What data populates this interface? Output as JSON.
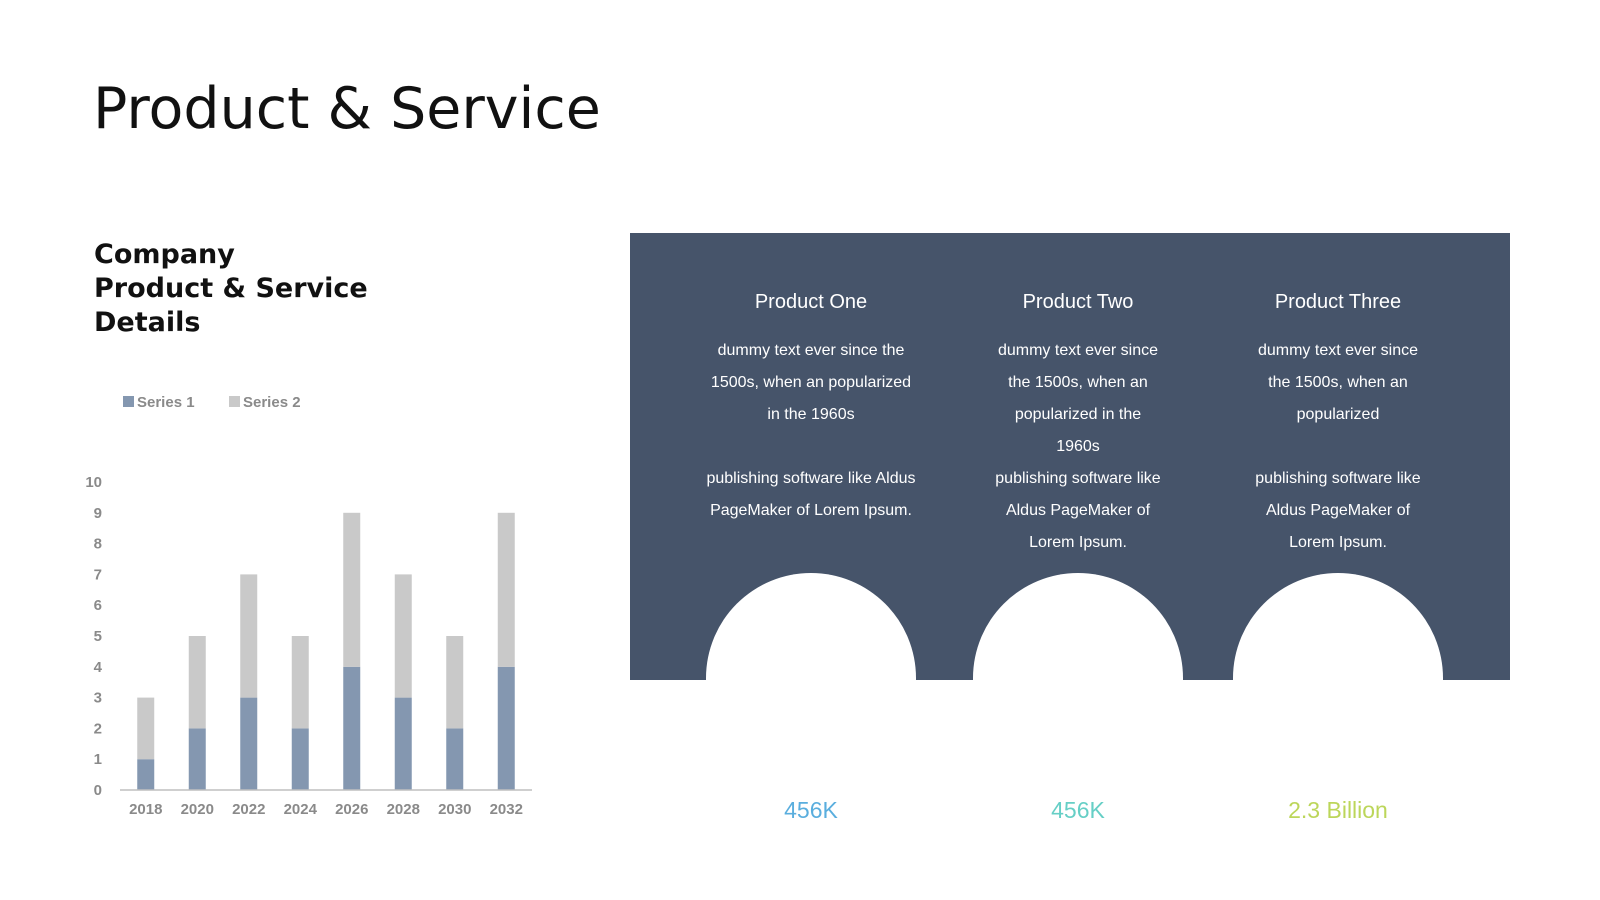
{
  "slide": {
    "title": "Product & Service",
    "subtitle_lines": [
      "Company",
      "Product & Service",
      "Details"
    ]
  },
  "chart_data": {
    "type": "bar",
    "stacked": true,
    "categories": [
      "2018",
      "2020",
      "2022",
      "2024",
      "2026",
      "2028",
      "2030",
      "2032"
    ],
    "series": [
      {
        "name": "Series 1",
        "values": [
          1,
          2,
          3,
          2,
          4,
          3,
          2,
          4
        ],
        "color": "#8497b0"
      },
      {
        "name": "Series 2",
        "values": [
          2,
          3,
          4,
          3,
          5,
          4,
          3,
          5
        ],
        "color": "#c9c9c9"
      }
    ],
    "yticks": [
      0,
      1,
      2,
      3,
      4,
      5,
      6,
      7,
      8,
      9,
      10
    ],
    "ylim": [
      0,
      10
    ],
    "legend_position": "top-left",
    "grid": false
  },
  "products": [
    {
      "title": "Product One",
      "desc1": "dummy text ever since the 1500s, when an popularized in the 1960s",
      "desc2": "publishing software like Aldus PageMaker of Lorem Ipsum.",
      "stat": "456K",
      "stat_color": "#5aaede"
    },
    {
      "title": "Product Two",
      "desc1": "dummy text ever since the 1500s, when an popularized in the 1960s",
      "desc2": "publishing software like Aldus PageMaker of Lorem Ipsum.",
      "stat": "456K",
      "stat_color": "#66cfc6"
    },
    {
      "title": "Product Three",
      "desc1": "dummy text ever since the 1500s, when an popularized",
      "desc2": "publishing software like Aldus PageMaker of Lorem Ipsum.",
      "stat": "2.3 Billion",
      "stat_color": "#bcd65a"
    }
  ],
  "colors": {
    "panel": "#46546a",
    "text": "#111111",
    "axis_text": "#8a8a8a"
  }
}
